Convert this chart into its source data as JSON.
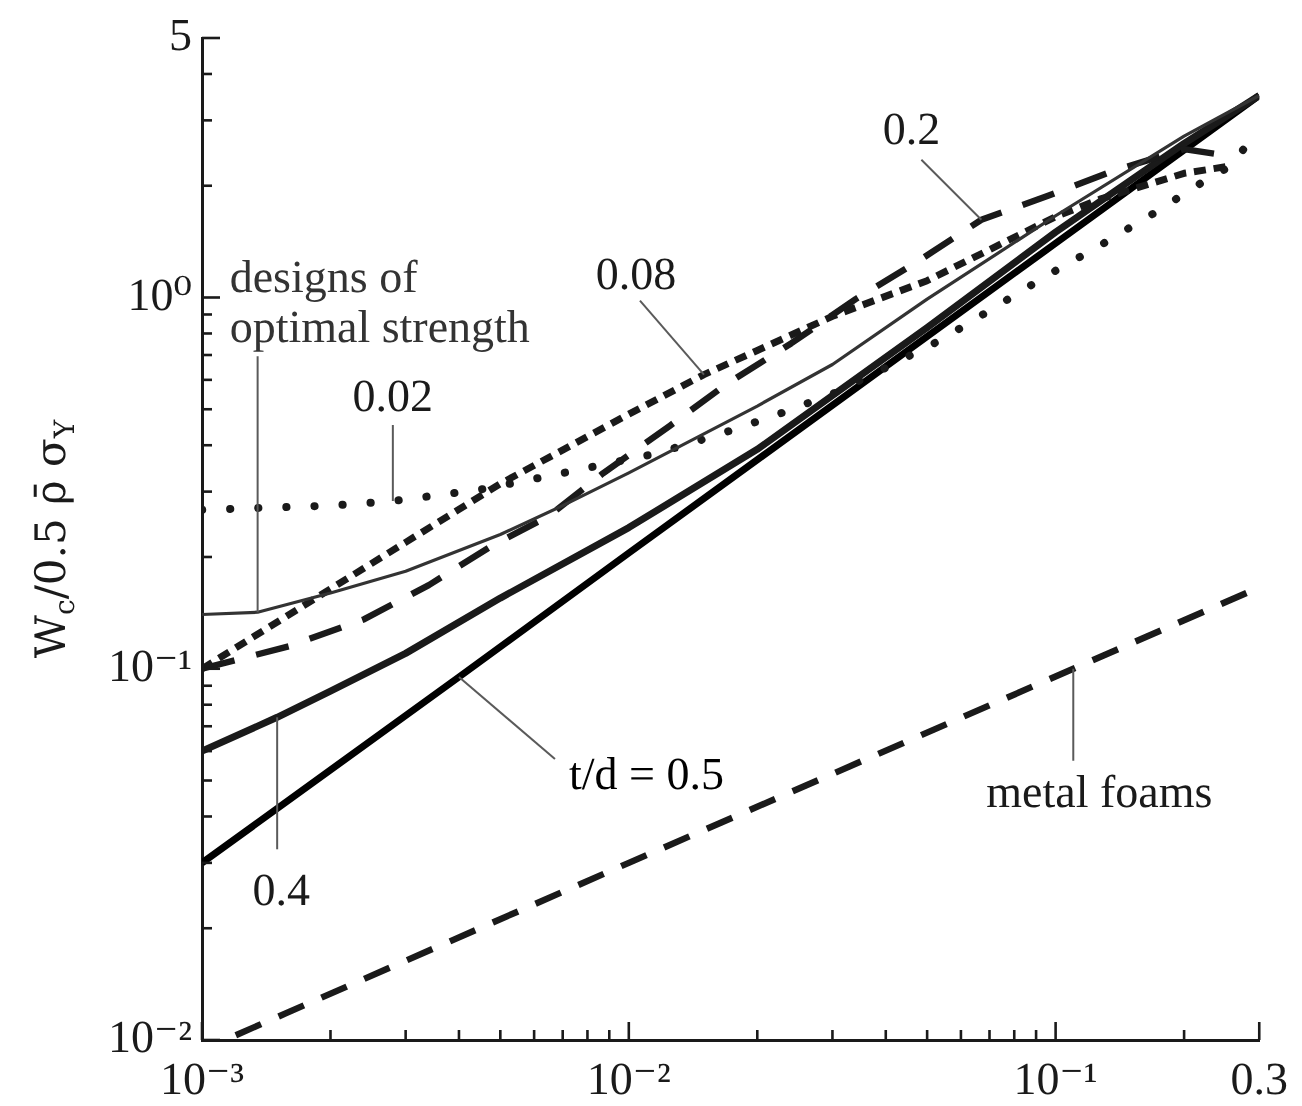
{
  "chart_data": {
    "type": "line",
    "ylabel": "W$_{c}$/0.5 ρ̄ σ$_{Y}$",
    "log": "xy",
    "grid": false,
    "legend": false,
    "marker": "none",
    "xlim": [
      0.001,
      0.3
    ],
    "ylim": [
      0.01,
      5
    ],
    "xticks": [
      {
        "value": 0.001,
        "label": "10⁻³"
      },
      {
        "value": 0.002,
        "label": null
      },
      {
        "value": 0.003,
        "label": null
      },
      {
        "value": 0.004,
        "label": null
      },
      {
        "value": 0.005,
        "label": null
      },
      {
        "value": 0.006,
        "label": null
      },
      {
        "value": 0.007,
        "label": null
      },
      {
        "value": 0.008,
        "label": null
      },
      {
        "value": 0.009,
        "label": null
      },
      {
        "value": 0.01,
        "label": "10⁻²"
      },
      {
        "value": 0.02,
        "label": null
      },
      {
        "value": 0.03,
        "label": null
      },
      {
        "value": 0.04,
        "label": null
      },
      {
        "value": 0.05,
        "label": null
      },
      {
        "value": 0.06,
        "label": null
      },
      {
        "value": 0.07,
        "label": null
      },
      {
        "value": 0.08,
        "label": null
      },
      {
        "value": 0.09,
        "label": null
      },
      {
        "value": 0.1,
        "label": "10⁻¹"
      },
      {
        "value": 0.2,
        "label": null
      },
      0.3
    ],
    "yticks": [
      {
        "value": 0.01,
        "label": "10⁻²"
      },
      {
        "value": 0.02,
        "label": null
      },
      {
        "value": 0.03,
        "label": null
      },
      {
        "value": 0.04,
        "label": null
      },
      {
        "value": 0.05,
        "label": null
      },
      {
        "value": 0.06,
        "label": null
      },
      {
        "value": 0.07,
        "label": null
      },
      {
        "value": 0.08,
        "label": null
      },
      {
        "value": 0.09,
        "label": null
      },
      {
        "value": 0.1,
        "label": "10⁻¹"
      },
      {
        "value": 0.2,
        "label": null
      },
      {
        "value": 0.3,
        "label": null
      },
      {
        "value": 0.4,
        "label": null
      },
      {
        "value": 0.5,
        "label": null
      },
      {
        "value": 0.6,
        "label": null
      },
      {
        "value": 0.7,
        "label": null
      },
      {
        "value": 0.8,
        "label": null
      },
      {
        "value": 0.9,
        "label": null
      },
      {
        "value": 1,
        "label": "10⁰"
      },
      {
        "value": 2,
        "label": null
      },
      {
        "value": 3,
        "label": null
      },
      {
        "value": 4,
        "label": null
      },
      5
    ],
    "series": [
      {
        "name": "designs of optimal strength",
        "color": "#333333",
        "line_style": "solid",
        "x": [
          0.001,
          0.00135,
          0.002,
          0.003,
          0.005,
          0.007,
          0.01,
          0.02,
          0.03,
          0.05,
          0.1,
          0.2,
          0.3
        ],
        "values": [
          0.14,
          0.142,
          0.16,
          0.183,
          0.23,
          0.275,
          0.337,
          0.51,
          0.66,
          0.99,
          1.66,
          2.72,
          3.5
        ]
      },
      {
        "name": "0.02",
        "color": "#1a1a1a",
        "line_style": "dotted",
        "x": [
          0.001,
          0.002,
          0.0028,
          0.0045,
          0.0062,
          0.0073,
          0.0116,
          0.016,
          0.022,
          0.03,
          0.041,
          0.054,
          0.073,
          0.096,
          0.127,
          0.169,
          0.226,
          0.259,
          0.275
        ],
        "values": [
          0.268,
          0.275,
          0.283,
          0.304,
          0.327,
          0.34,
          0.38,
          0.425,
          0.481,
          0.55,
          0.656,
          0.77,
          0.95,
          1.15,
          1.38,
          1.68,
          2.08,
          2.27,
          2.5
        ]
      },
      {
        "name": "0.08",
        "color": "#1a1a1a",
        "line_style": "dashed",
        "x": [
          0.001,
          0.002,
          0.003,
          0.005,
          0.01,
          0.015,
          0.02,
          0.03,
          0.05,
          0.1,
          0.127,
          0.2,
          0.25
        ],
        "values": [
          0.1,
          0.164,
          0.219,
          0.315,
          0.485,
          0.62,
          0.72,
          0.89,
          1.11,
          1.65,
          1.84,
          2.16,
          2.25
        ]
      },
      {
        "name": "0.2",
        "color": "#1a1a1a",
        "line_style": "dashed",
        "x": [
          0.001,
          0.0016,
          0.0024,
          0.0034,
          0.0048,
          0.0065,
          0.0087,
          0.0125,
          0.017,
          0.024,
          0.034,
          0.047,
          0.067,
          0.096,
          0.136,
          0.2,
          0.235
        ],
        "values": [
          0.1,
          0.115,
          0.136,
          0.168,
          0.215,
          0.258,
          0.336,
          0.452,
          0.586,
          0.752,
          0.99,
          1.24,
          1.62,
          1.88,
          2.19,
          2.51,
          2.44
        ]
      },
      {
        "name": "0.4",
        "color": "#1a1a1a",
        "line_style": "solid",
        "x": [
          0.001,
          0.0015,
          0.002,
          0.003,
          0.005,
          0.01,
          0.02,
          0.05,
          0.1,
          0.2,
          0.3
        ],
        "values": [
          0.06,
          0.074,
          0.087,
          0.11,
          0.155,
          0.24,
          0.39,
          0.83,
          1.5,
          2.6,
          3.5
        ]
      },
      {
        "name": "t/d = 0.5",
        "color": "#000000",
        "line_style": "solid",
        "x": [
          0.001,
          0.004,
          0.01,
          0.1,
          0.3
        ],
        "values": [
          0.03,
          0.095,
          0.205,
          1.4,
          3.5
        ]
      },
      {
        "name": "metal foams",
        "color": "#1a1a1a",
        "line_style": "dashed",
        "x": [
          0.0012,
          0.01,
          0.11,
          0.28
        ],
        "values": [
          0.0103,
          0.03,
          0.1,
          0.16
        ]
      }
    ]
  }
}
